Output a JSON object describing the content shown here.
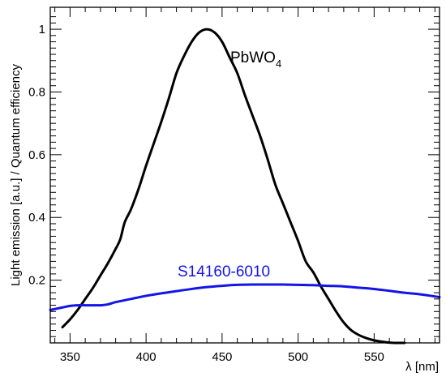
{
  "chart_data": {
    "type": "line",
    "xlabel": "λ [nm]",
    "ylabel": "Light emission [a.u.] / Quantum efficiency",
    "xlim": [
      337,
      593
    ],
    "ylim": [
      0,
      1.07
    ],
    "x_ticks": [
      350,
      400,
      450,
      500,
      550
    ],
    "y_ticks": [
      0.2,
      0.4,
      0.6,
      0.8,
      1
    ],
    "x_tick_labels": [
      "350",
      "400",
      "450",
      "500",
      "550"
    ],
    "y_tick_labels": [
      "0.2",
      "0.4",
      "0.6",
      "0.8",
      "1"
    ],
    "grid": false,
    "series": [
      {
        "name": "PbWO4",
        "label_main": "PbWO",
        "label_sub": "4",
        "color": "#000000",
        "x": [
          345,
          350,
          355,
          360,
          365,
          370,
          375,
          380,
          383,
          386,
          390,
          395,
          400,
          405,
          410,
          415,
          420,
          425,
          430,
          435,
          440,
          445,
          450,
          455,
          460,
          465,
          470,
          475,
          480,
          485,
          490,
          495,
          500,
          505,
          510,
          515,
          520,
          525,
          530,
          535,
          540,
          545,
          550,
          555,
          560,
          565,
          570
        ],
        "values": [
          0.05,
          0.075,
          0.105,
          0.14,
          0.175,
          0.215,
          0.255,
          0.3,
          0.33,
          0.385,
          0.425,
          0.49,
          0.565,
          0.635,
          0.705,
          0.78,
          0.86,
          0.915,
          0.96,
          0.99,
          1.0,
          0.99,
          0.96,
          0.91,
          0.86,
          0.79,
          0.725,
          0.66,
          0.585,
          0.505,
          0.445,
          0.385,
          0.325,
          0.26,
          0.225,
          0.18,
          0.14,
          0.1,
          0.065,
          0.04,
          0.025,
          0.015,
          0.008,
          0.004,
          0.001,
          0.0,
          0.0
        ]
      },
      {
        "name": "S14160-6010",
        "color": "#1414e6",
        "x": [
          337,
          345,
          350,
          355,
          360,
          365,
          370,
          375,
          380,
          390,
          400,
          410,
          420,
          430,
          440,
          450,
          460,
          470,
          480,
          490,
          500,
          510,
          520,
          530,
          540,
          550,
          560,
          570,
          580,
          593
        ],
        "values": [
          0.105,
          0.113,
          0.118,
          0.12,
          0.12,
          0.12,
          0.12,
          0.123,
          0.13,
          0.14,
          0.15,
          0.158,
          0.165,
          0.172,
          0.178,
          0.182,
          0.185,
          0.186,
          0.186,
          0.186,
          0.185,
          0.184,
          0.182,
          0.18,
          0.176,
          0.172,
          0.166,
          0.16,
          0.155,
          0.146
        ]
      }
    ]
  }
}
